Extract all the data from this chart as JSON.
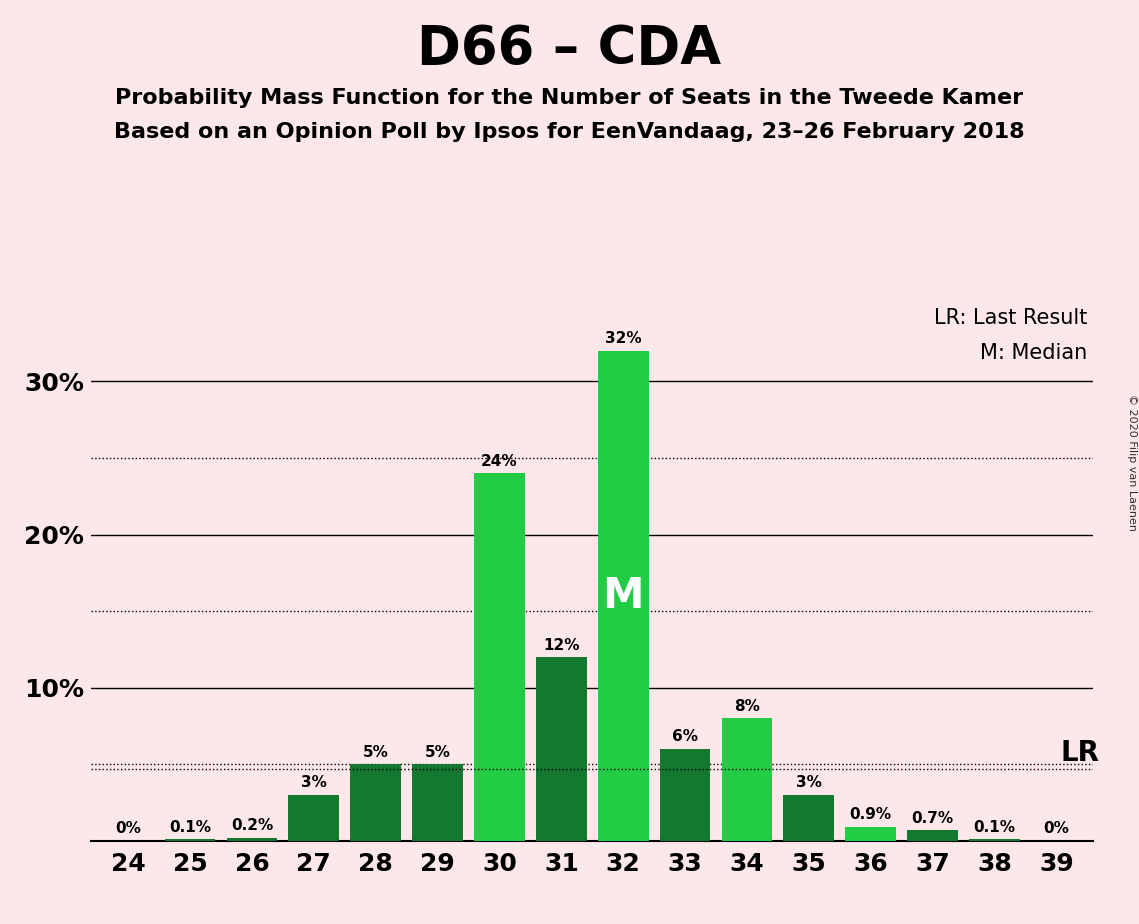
{
  "title": "D66 – CDA",
  "subtitle1": "Probability Mass Function for the Number of Seats in the Tweede Kamer",
  "subtitle2": "Based on an Opinion Poll by Ipsos for EenVandaag, 23–26 February 2018",
  "copyright": "© 2020 Filip van Laenen",
  "legend_lr": "LR: Last Result",
  "legend_m": "M: Median",
  "categories": [
    24,
    25,
    26,
    27,
    28,
    29,
    30,
    31,
    32,
    33,
    34,
    35,
    36,
    37,
    38,
    39
  ],
  "values": [
    0.0,
    0.1,
    0.2,
    3.0,
    5.0,
    5.0,
    24.0,
    12.0,
    32.0,
    6.0,
    8.0,
    3.0,
    0.9,
    0.7,
    0.1,
    0.0
  ],
  "light_green": "#22cc44",
  "dark_green": "#147830",
  "light_seats": [
    30,
    32,
    34,
    36
  ],
  "background_color": "#fce8e8",
  "median_seat": 32,
  "lr_value": 4.7,
  "ylim": [
    0,
    35
  ],
  "solid_lines": [
    10,
    20,
    30
  ],
  "dotted_lines": [
    5,
    15,
    25
  ],
  "lr_line": 4.7,
  "bar_width": 0.82
}
